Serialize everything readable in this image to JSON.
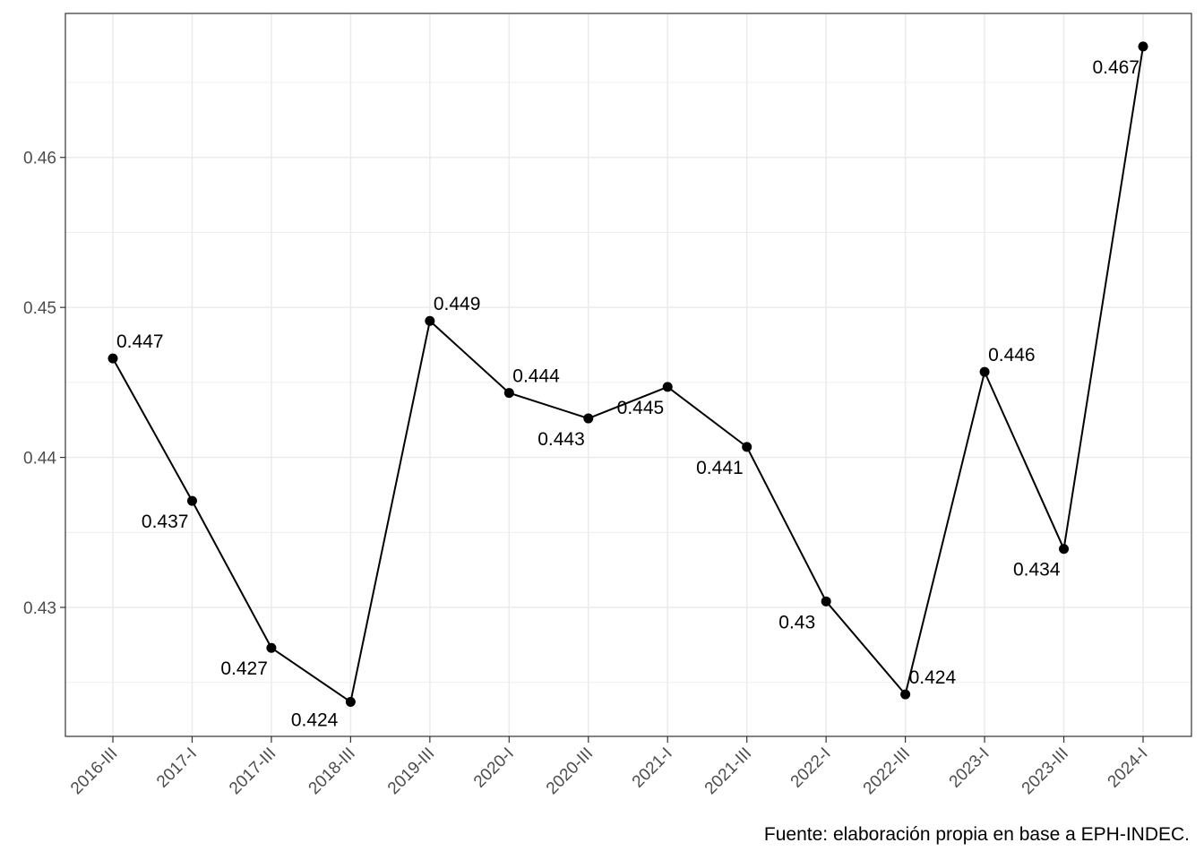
{
  "chart_data": {
    "type": "line",
    "categories": [
      "2016-III",
      "2017-I",
      "2017-III",
      "2018-III",
      "2019-III",
      "2020-I",
      "2020-III",
      "2021-I",
      "2021-III",
      "2022-I",
      "2022-III",
      "2023-I",
      "2023-III",
      "2024-I"
    ],
    "series": [
      {
        "values": [
          0.4466,
          0.4371,
          0.4273,
          0.4237,
          0.4491,
          0.4443,
          0.4426,
          0.4447,
          0.4407,
          0.4304,
          0.4242,
          0.4457,
          0.4339,
          0.4674
        ]
      }
    ],
    "data_labels": [
      "0.447",
      "0.437",
      "0.427",
      "0.424",
      "0.449",
      "0.444",
      "0.443",
      "0.445",
      "0.441",
      "0.43",
      "0.424",
      "0.446",
      "0.434",
      "0.467"
    ],
    "yticks": [
      "0.43",
      "0.44",
      "0.45",
      "0.46"
    ],
    "ylim": [
      0.4214,
      0.4696
    ],
    "grid": true,
    "line_color": "#000000",
    "caption": "Fuente: elaboración propia en base a EPH-INDEC."
  }
}
